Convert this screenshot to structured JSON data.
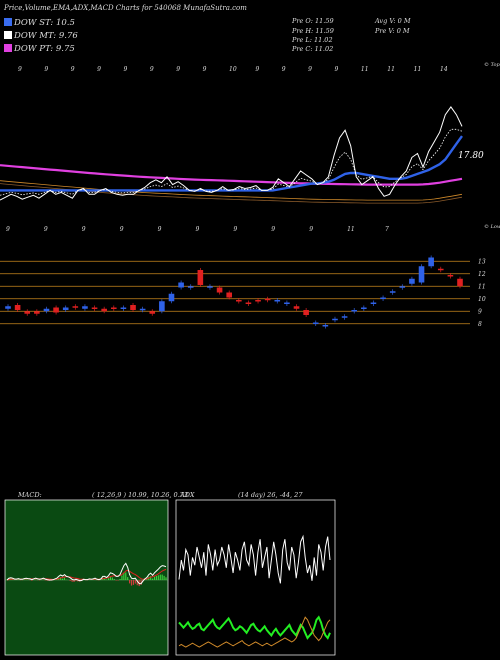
{
  "title": "Price,Volume,EMA,ADX,MACD Charts for 540068 MunafaSutra.com",
  "legend": [
    {
      "label": "DOW ST: 10.5",
      "color": "#3a6df0"
    },
    {
      "label": "DOW MT: 9.76",
      "color": "#ffffff"
    },
    {
      "label": "DOW PT: 9.75",
      "color": "#e040e0"
    }
  ],
  "stats": {
    "pre_o": "Pre   O: 11.59",
    "pre_h": "Pre   H: 11.59",
    "pre_l": "Pre   L: 11.02",
    "pre_c": "Pre   C: 11.02",
    "avg_v": "Avg V: 0  M",
    "pre_v": "Pre   V: 0  M"
  },
  "chart_data": [
    {
      "type": "line",
      "name": "price-ema-panel",
      "top_labels": [
        "9",
        "9",
        "9",
        "9",
        "9",
        "9",
        "9",
        "9",
        "10",
        "9",
        "9",
        "9",
        "9",
        "11",
        "11",
        "11",
        "14"
      ],
      "bottom_labels": [
        "9",
        "9",
        "9",
        "9",
        "9",
        "9",
        "9",
        "9",
        "9",
        "11",
        "7"
      ],
      "right_top_label": "© Tops",
      "right_bottom_label": "© Lows",
      "last_value_label": "17.80",
      "price_line": [
        10.0,
        10.3,
        10.6,
        10.4,
        10.1,
        10.3,
        10.5,
        10.2,
        10.6,
        11.0,
        10.6,
        10.8,
        10.5,
        10.2,
        11.0,
        11.2,
        10.6,
        10.6,
        11.0,
        11.2,
        10.8,
        10.6,
        10.5,
        10.6,
        10.6,
        11.0,
        11.3,
        11.8,
        12.1,
        11.8,
        12.4,
        11.6,
        11.9,
        11.5,
        11.0,
        10.9,
        11.2,
        10.9,
        10.8,
        11.0,
        11.4,
        11.0,
        11.1,
        11.4,
        11.2,
        11.3,
        11.5,
        11.0,
        11.0,
        11.3,
        12.2,
        11.8,
        11.4,
        12.2,
        13.0,
        12.6,
        12.2,
        11.6,
        11.8,
        12.4,
        14.6,
        16.4,
        17.2,
        15.6,
        12.4,
        11.6,
        12.0,
        12.4,
        11.2,
        10.4,
        10.6,
        11.6,
        12.4,
        13.0,
        14.4,
        14.8,
        13.4,
        15.0,
        16.0,
        17.0,
        18.8,
        19.6,
        18.8,
        17.6
      ],
      "ema_mt": [
        11.0,
        11.0,
        11.0,
        11.0,
        11.0,
        11.0,
        11.0,
        11.0,
        11.0,
        11.0,
        11.0,
        11.0,
        11.0,
        11.0,
        11.0,
        11.0,
        11.0,
        11.0,
        11.0,
        11.0,
        11.0,
        11.0,
        11.0,
        11.0,
        11.0,
        11.0,
        11.0,
        11.0,
        11.0,
        11.0,
        11.0,
        11.0,
        11.0,
        11.0,
        11.0,
        11.0,
        11.0,
        11.0,
        11.0,
        11.0,
        11.0,
        11.0,
        11.0,
        11.0,
        11.0,
        11.0,
        11.0,
        11.0,
        11.0,
        11.0,
        11.1,
        11.2,
        11.3,
        11.4,
        11.5,
        11.6,
        11.7,
        11.7,
        11.8,
        11.9,
        12.1,
        12.4,
        12.7,
        12.8,
        12.8,
        12.7,
        12.6,
        12.5,
        12.4,
        12.3,
        12.2,
        12.2,
        12.2,
        12.3,
        12.5,
        12.7,
        12.9,
        13.1,
        13.4,
        13.7,
        14.2,
        15.0,
        15.8,
        16.6
      ],
      "ema_lt": [
        13.6,
        13.55,
        13.5,
        13.45,
        13.4,
        13.35,
        13.3,
        13.25,
        13.2,
        13.15,
        13.1,
        13.05,
        13.0,
        12.95,
        12.9,
        12.85,
        12.8,
        12.75,
        12.7,
        12.66,
        12.62,
        12.58,
        12.54,
        12.5,
        12.46,
        12.42,
        12.38,
        12.35,
        12.32,
        12.29,
        12.26,
        12.23,
        12.2,
        12.17,
        12.14,
        12.12,
        12.1,
        12.08,
        12.06,
        12.04,
        12.02,
        12.0,
        11.98,
        11.96,
        11.94,
        11.92,
        11.9,
        11.88,
        11.86,
        11.84,
        11.82,
        11.8,
        11.78,
        11.76,
        11.74,
        11.72,
        11.7,
        11.69,
        11.68,
        11.67,
        11.66,
        11.65,
        11.64,
        11.63,
        11.62,
        11.61,
        11.6,
        11.6,
        11.6,
        11.6,
        11.6,
        11.6,
        11.6,
        11.6,
        11.6,
        11.6,
        11.62,
        11.66,
        11.72,
        11.8,
        11.9,
        12.0,
        12.1,
        12.2
      ]
    },
    {
      "type": "bar",
      "name": "candlestick-panel",
      "y_ticks": [
        "13",
        "12",
        "11",
        "10",
        "9",
        "8"
      ],
      "y_tick_values": [
        13,
        12,
        11,
        10,
        9,
        8
      ],
      "ylim": [
        7.5,
        13.9
      ],
      "candles": [
        {
          "o": 9.2,
          "c": 9.4,
          "dir": "up"
        },
        {
          "o": 9.5,
          "c": 9.1,
          "dir": "down"
        },
        {
          "o": 9.0,
          "c": 8.8,
          "dir": "down"
        },
        {
          "o": 9.0,
          "c": 8.8,
          "dir": "down"
        },
        {
          "o": 9.0,
          "c": 9.2,
          "dir": "up"
        },
        {
          "o": 9.3,
          "c": 8.9,
          "dir": "down"
        },
        {
          "o": 9.1,
          "c": 9.3,
          "dir": "up"
        },
        {
          "o": 9.4,
          "c": 9.3,
          "dir": "down"
        },
        {
          "o": 9.2,
          "c": 9.4,
          "dir": "up"
        },
        {
          "o": 9.3,
          "c": 9.3,
          "dir": "down"
        },
        {
          "o": 9.2,
          "c": 9.0,
          "dir": "down"
        },
        {
          "o": 9.2,
          "c": 9.3,
          "dir": "down"
        },
        {
          "o": 9.3,
          "c": 9.3,
          "dir": "up"
        },
        {
          "o": 9.5,
          "c": 9.1,
          "dir": "down"
        },
        {
          "o": 9.1,
          "c": 9.2,
          "dir": "up"
        },
        {
          "o": 9.0,
          "c": 8.8,
          "dir": "down"
        },
        {
          "o": 9.0,
          "c": 9.8,
          "dir": "up"
        },
        {
          "o": 9.8,
          "c": 10.4,
          "dir": "up"
        },
        {
          "o": 10.9,
          "c": 11.3,
          "dir": "up"
        },
        {
          "o": 11.0,
          "c": 11.0,
          "dir": "up"
        },
        {
          "o": 12.3,
          "c": 11.1,
          "dir": "down"
        },
        {
          "o": 11.0,
          "c": 11.0,
          "dir": "up"
        },
        {
          "o": 10.9,
          "c": 10.5,
          "dir": "down"
        },
        {
          "o": 10.5,
          "c": 10.1,
          "dir": "down"
        },
        {
          "o": 9.9,
          "c": 9.9,
          "dir": "down"
        },
        {
          "o": 9.7,
          "c": 9.7,
          "dir": "down"
        },
        {
          "o": 9.9,
          "c": 9.9,
          "dir": "down"
        },
        {
          "o": 10.0,
          "c": 10.0,
          "dir": "down"
        },
        {
          "o": 9.9,
          "c": 9.9,
          "dir": "up"
        },
        {
          "o": 9.7,
          "c": 9.7,
          "dir": "up"
        },
        {
          "o": 9.4,
          "c": 9.2,
          "dir": "down"
        },
        {
          "o": 9.1,
          "c": 8.7,
          "dir": "down"
        },
        {
          "o": 8.1,
          "c": 8.1,
          "dir": "up"
        },
        {
          "o": 7.9,
          "c": 7.9,
          "dir": "up"
        },
        {
          "o": 8.4,
          "c": 8.4,
          "dir": "up"
        },
        {
          "o": 8.6,
          "c": 8.6,
          "dir": "up"
        },
        {
          "o": 9.1,
          "c": 9.1,
          "dir": "up"
        },
        {
          "o": 9.3,
          "c": 9.3,
          "dir": "up"
        },
        {
          "o": 9.7,
          "c": 9.7,
          "dir": "up"
        },
        {
          "o": 10.1,
          "c": 10.1,
          "dir": "up"
        },
        {
          "o": 10.6,
          "c": 10.6,
          "dir": "up"
        },
        {
          "o": 11.0,
          "c": 11.0,
          "dir": "up"
        },
        {
          "o": 11.2,
          "c": 11.6,
          "dir": "up"
        },
        {
          "o": 11.3,
          "c": 12.6,
          "dir": "up"
        },
        {
          "o": 12.6,
          "c": 13.3,
          "dir": "up"
        },
        {
          "o": 12.4,
          "c": 12.4,
          "dir": "down"
        },
        {
          "o": 11.9,
          "c": 11.9,
          "dir": "down"
        },
        {
          "o": 11.6,
          "c": 11.0,
          "dir": "down"
        }
      ]
    },
    {
      "type": "area",
      "name": "macd-panel",
      "label": "MACD:",
      "params": "( 12,26,9 ) 10.99,  10.26,  0.73",
      "macd": [
        0.0,
        0.1,
        0.12,
        0.1,
        0.05,
        0.05,
        0.08,
        0.04,
        0.04,
        0.08,
        0.1,
        0.08,
        0.06,
        0.02,
        0.06,
        0.1,
        0.06,
        0.04,
        0.06,
        0.1,
        0.05,
        0.02,
        0.0,
        0.0,
        0.01,
        0.06,
        0.1,
        0.2,
        0.28,
        0.22,
        0.3,
        0.2,
        0.18,
        0.12,
        0.04,
        0.0,
        0.04,
        0.0,
        -0.04,
        -0.02,
        0.04,
        0.02,
        0.02,
        0.06,
        0.04,
        0.06,
        0.1,
        0.04,
        0.02,
        0.06,
        0.2,
        0.2,
        0.14,
        0.24,
        0.4,
        0.36,
        0.3,
        0.2,
        0.2,
        0.3,
        0.55,
        0.8,
        0.92,
        0.7,
        0.3,
        0.1,
        0.08,
        0.1,
        -0.06,
        -0.2,
        -0.2,
        -0.05,
        0.06,
        0.14,
        0.3,
        0.38,
        0.26,
        0.4,
        0.5,
        0.6,
        0.72,
        0.8,
        0.78,
        0.74
      ],
      "signal": [
        0.0,
        0.02,
        0.04,
        0.05,
        0.05,
        0.05,
        0.06,
        0.05,
        0.05,
        0.06,
        0.07,
        0.07,
        0.07,
        0.06,
        0.06,
        0.07,
        0.07,
        0.06,
        0.06,
        0.07,
        0.07,
        0.06,
        0.05,
        0.04,
        0.03,
        0.04,
        0.05,
        0.08,
        0.12,
        0.14,
        0.17,
        0.18,
        0.18,
        0.17,
        0.14,
        0.11,
        0.1,
        0.08,
        0.05,
        0.04,
        0.04,
        0.03,
        0.03,
        0.04,
        0.04,
        0.04,
        0.05,
        0.05,
        0.04,
        0.05,
        0.08,
        0.1,
        0.11,
        0.14,
        0.19,
        0.22,
        0.24,
        0.23,
        0.23,
        0.24,
        0.3,
        0.4,
        0.5,
        0.54,
        0.49,
        0.41,
        0.35,
        0.3,
        0.23,
        0.14,
        0.07,
        0.04,
        0.04,
        0.06,
        0.11,
        0.16,
        0.18,
        0.22,
        0.28,
        0.34,
        0.42,
        0.5,
        0.55,
        0.59
      ]
    },
    {
      "type": "line",
      "name": "adx-panel",
      "label": "ADX",
      "params": "(14  day) 26,  -44,  27",
      "dmi_plus": [
        55,
        70,
        62,
        78,
        74,
        58,
        72,
        66,
        80,
        72,
        64,
        76,
        58,
        82,
        74,
        62,
        78,
        66,
        70,
        80,
        74,
        64,
        82,
        72,
        60,
        76,
        70,
        62,
        78,
        84,
        70,
        66,
        82,
        74,
        58,
        76,
        86,
        64,
        72,
        80,
        56,
        70,
        84,
        74,
        60,
        52,
        78,
        86,
        68,
        62,
        80,
        74,
        56,
        68,
        84,
        88,
        72,
        60,
        66,
        54,
        72,
        58,
        82,
        76,
        62,
        80,
        88,
        70
      ],
      "dmi_minus": [
        22,
        20,
        18,
        20,
        22,
        19,
        17,
        18,
        20,
        21,
        17,
        16,
        18,
        20,
        22,
        24,
        20,
        18,
        17,
        19,
        21,
        23,
        25,
        22,
        18,
        16,
        17,
        19,
        18,
        16,
        14,
        17,
        20,
        21,
        18,
        16,
        15,
        17,
        19,
        16,
        14,
        12,
        15,
        17,
        14,
        12,
        14,
        16,
        18,
        20,
        16,
        14,
        12,
        16,
        20,
        18,
        14,
        10,
        12,
        14,
        18,
        24,
        26,
        22,
        16,
        12,
        10,
        14
      ],
      "adx": [
        4,
        5,
        4,
        3,
        4,
        5,
        6,
        5,
        4,
        3,
        4,
        5,
        6,
        7,
        6,
        5,
        4,
        3,
        4,
        5,
        6,
        7,
        6,
        5,
        4,
        5,
        6,
        7,
        8,
        6,
        5,
        4,
        5,
        6,
        7,
        6,
        5,
        4,
        5,
        6,
        5,
        4,
        5,
        6,
        7,
        8,
        9,
        10,
        9,
        8,
        7,
        8,
        10,
        14,
        18,
        22,
        26,
        24,
        20,
        16,
        12,
        10,
        8,
        10,
        14,
        18,
        22,
        24
      ]
    }
  ]
}
